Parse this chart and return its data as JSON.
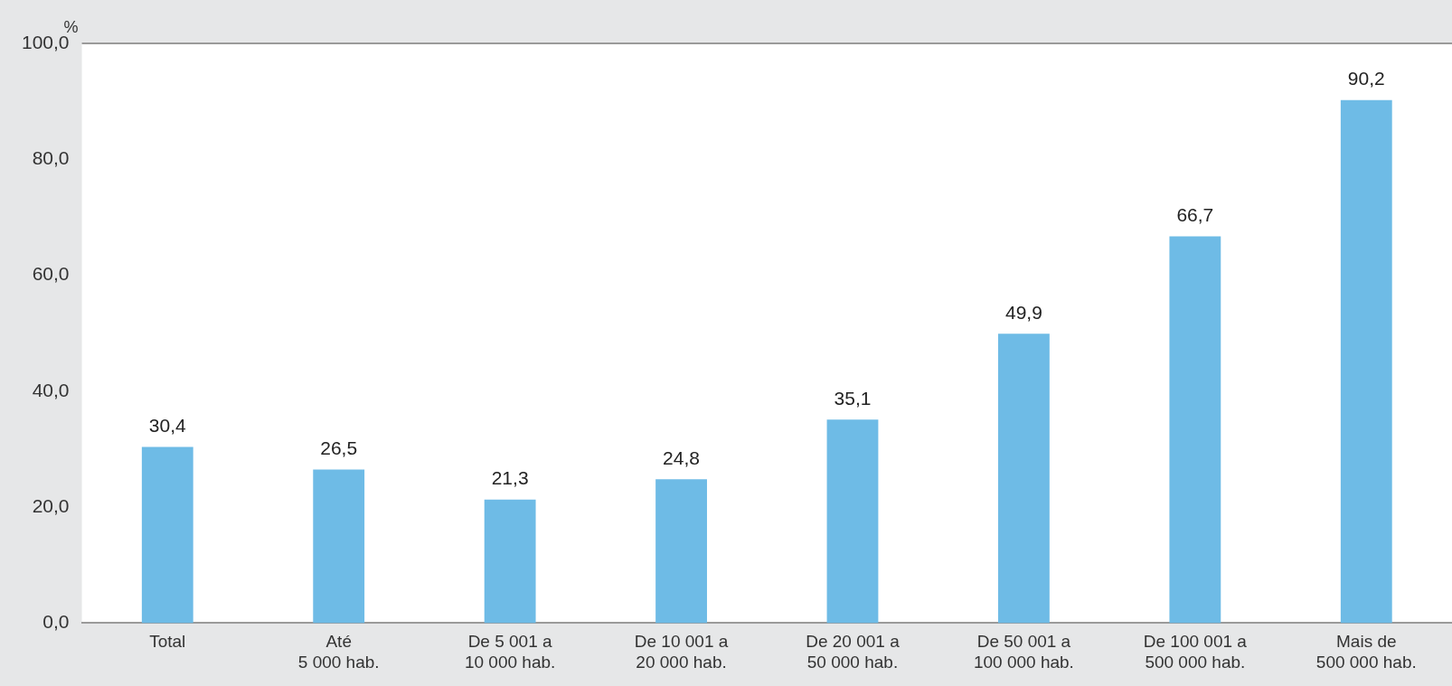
{
  "chart_data": {
    "type": "bar",
    "ylabel": "%",
    "categories": [
      "Total",
      "Até\n5 000 hab.",
      "De 5 001 a\n10 000 hab.",
      "De 10 001 a\n20 000 hab.",
      "De 20 001 a\n50 000 hab.",
      "De 50 001 a\n100 000 hab.",
      "De 100 001 a\n500 000 hab.",
      "Mais de\n500 000 hab."
    ],
    "values": [
      30.4,
      26.5,
      21.3,
      24.8,
      35.1,
      49.9,
      66.7,
      90.2
    ],
    "value_labels": [
      "30,4",
      "26,5",
      "21,3",
      "24,8",
      "35,1",
      "49,9",
      "66,7",
      "90,2"
    ],
    "color": "#6ebbe6",
    "ylim": [
      0,
      100
    ],
    "yticks": [
      {
        "value": 0,
        "label": "0,0"
      },
      {
        "value": 20,
        "label": "20,0"
      },
      {
        "value": 40,
        "label": "40,0"
      },
      {
        "value": 60,
        "label": "60,0"
      },
      {
        "value": 80,
        "label": "80,0"
      },
      {
        "value": 100,
        "label": "100,0"
      }
    ],
    "grid": false,
    "legend": false
  }
}
